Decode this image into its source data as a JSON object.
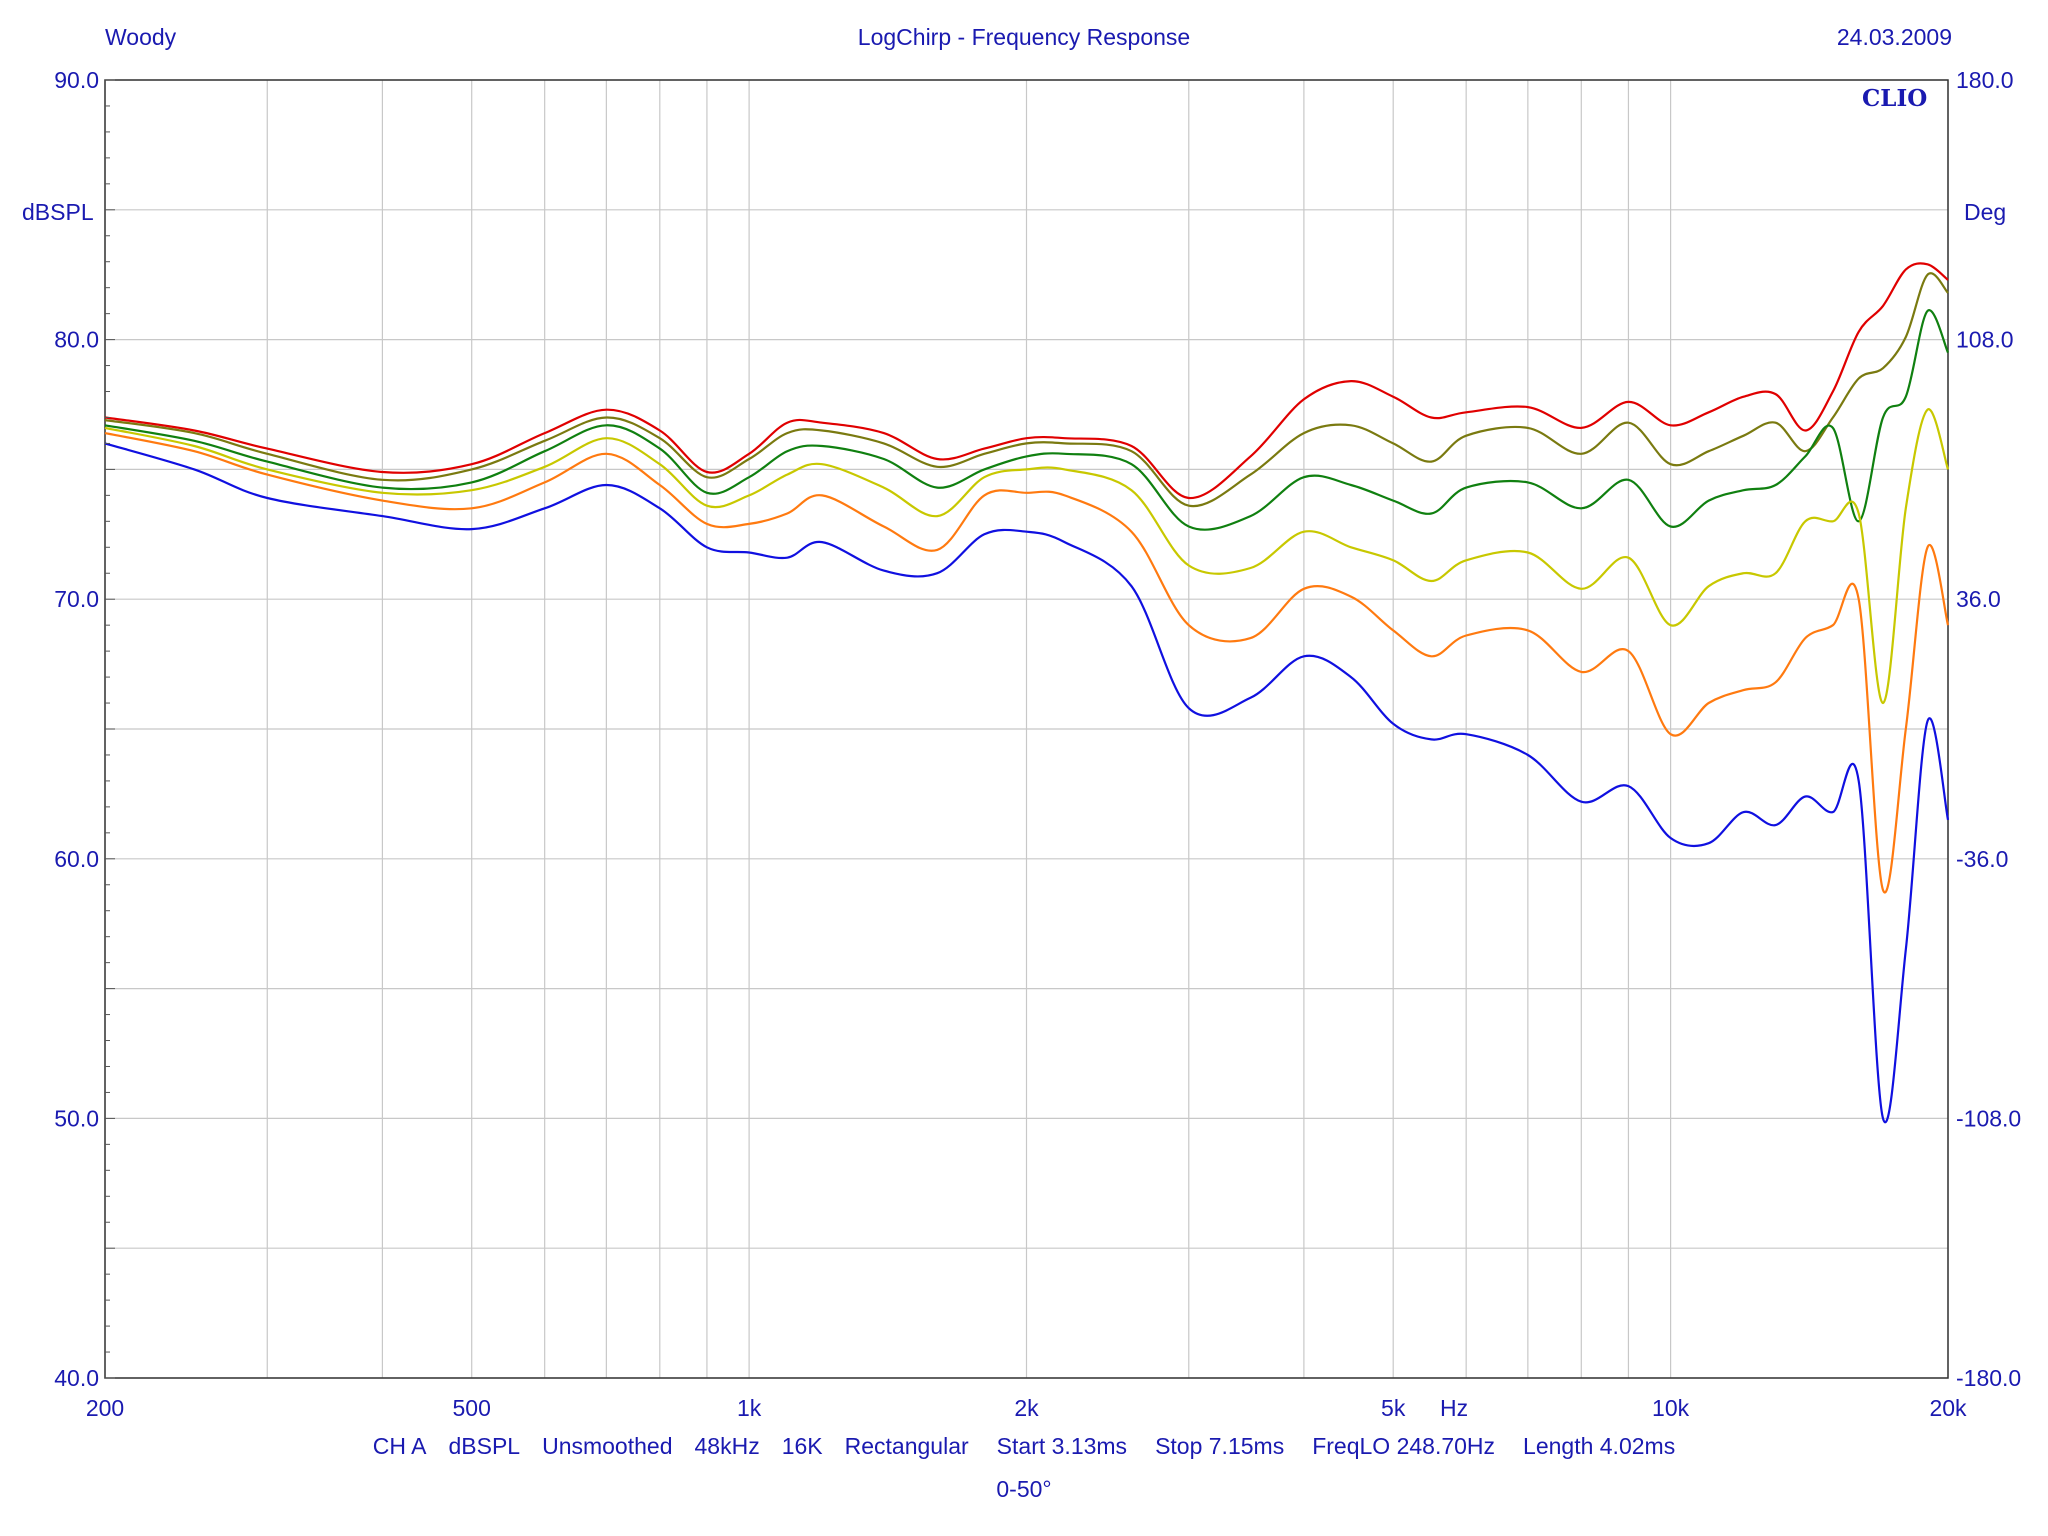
{
  "header": {
    "left": "Woody",
    "center": "LogChirp - Frequency Response",
    "right": "24.03.2009"
  },
  "logo_text": "CLIO",
  "footer": {
    "settings": [
      "CH A",
      "dBSPL",
      "Unsmoothed",
      "48kHz",
      "16K",
      "Rectangular",
      "Start 3.13ms",
      "Stop 7.15ms",
      "FreqLO 248.70Hz",
      "Length 4.02ms"
    ],
    "caption": "0-50°"
  },
  "chart_data": {
    "type": "line",
    "title": "LogChirp - Frequency Response",
    "xlabel": "Hz",
    "ylabel": "dBSPL",
    "y2label": "Deg",
    "x_scale": "log",
    "xlim": [
      200,
      20000
    ],
    "ylim": [
      40,
      90
    ],
    "y2lim": [
      -180,
      180
    ],
    "grid": true,
    "x_tick_labels": [
      {
        "value": 200,
        "label": "200"
      },
      {
        "value": 500,
        "label": "500"
      },
      {
        "value": 1000,
        "label": "1k"
      },
      {
        "value": 2000,
        "label": "2k"
      },
      {
        "value": 5000,
        "label": "5k"
      },
      {
        "value": 10000,
        "label": "10k"
      },
      {
        "value": 20000,
        "label": "20k"
      }
    ],
    "y_tick_labels": [
      "40.0",
      "50.0",
      "60.0",
      "70.0",
      "80.0",
      "90.0"
    ],
    "y2_tick_labels": [
      "-180.0",
      "-108.0",
      "-36.0",
      "36.0",
      "108.0",
      "180.0"
    ],
    "series": [
      {
        "color": "#e00000",
        "points": [
          [
            200,
            77.0
          ],
          [
            250,
            76.5
          ],
          [
            300,
            75.8
          ],
          [
            400,
            74.9
          ],
          [
            500,
            75.2
          ],
          [
            600,
            76.4
          ],
          [
            700,
            77.3
          ],
          [
            800,
            76.5
          ],
          [
            900,
            74.9
          ],
          [
            1000,
            75.6
          ],
          [
            1100,
            76.8
          ],
          [
            1200,
            76.8
          ],
          [
            1400,
            76.4
          ],
          [
            1600,
            75.4
          ],
          [
            1800,
            75.8
          ],
          [
            2000,
            76.2
          ],
          [
            2200,
            76.2
          ],
          [
            2600,
            75.9
          ],
          [
            3000,
            73.9
          ],
          [
            3500,
            75.5
          ],
          [
            4000,
            77.7
          ],
          [
            4500,
            78.4
          ],
          [
            5000,
            77.8
          ],
          [
            5500,
            77.0
          ],
          [
            6000,
            77.2
          ],
          [
            7000,
            77.4
          ],
          [
            8000,
            76.6
          ],
          [
            9000,
            77.6
          ],
          [
            10000,
            76.7
          ],
          [
            11000,
            77.2
          ],
          [
            12000,
            77.8
          ],
          [
            13000,
            77.9
          ],
          [
            14000,
            76.5
          ],
          [
            15000,
            78.0
          ],
          [
            16000,
            80.3
          ],
          [
            17000,
            81.3
          ],
          [
            18000,
            82.7
          ],
          [
            19000,
            82.9
          ],
          [
            20000,
            82.3
          ]
        ]
      },
      {
        "color": "#7a7a10",
        "points": [
          [
            200,
            76.9
          ],
          [
            250,
            76.4
          ],
          [
            300,
            75.6
          ],
          [
            400,
            74.6
          ],
          [
            500,
            75.0
          ],
          [
            600,
            76.1
          ],
          [
            700,
            77.0
          ],
          [
            800,
            76.2
          ],
          [
            900,
            74.7
          ],
          [
            1000,
            75.4
          ],
          [
            1100,
            76.4
          ],
          [
            1200,
            76.5
          ],
          [
            1400,
            76.0
          ],
          [
            1600,
            75.1
          ],
          [
            1800,
            75.6
          ],
          [
            2000,
            76.0
          ],
          [
            2200,
            76.0
          ],
          [
            2600,
            75.7
          ],
          [
            3000,
            73.6
          ],
          [
            3500,
            74.8
          ],
          [
            4000,
            76.4
          ],
          [
            4500,
            76.7
          ],
          [
            5000,
            76.0
          ],
          [
            5500,
            75.3
          ],
          [
            6000,
            76.3
          ],
          [
            7000,
            76.6
          ],
          [
            8000,
            75.6
          ],
          [
            9000,
            76.8
          ],
          [
            10000,
            75.2
          ],
          [
            11000,
            75.7
          ],
          [
            12000,
            76.3
          ],
          [
            13000,
            76.8
          ],
          [
            14000,
            75.7
          ],
          [
            15000,
            77.0
          ],
          [
            16000,
            78.5
          ],
          [
            17000,
            78.9
          ],
          [
            18000,
            80.1
          ],
          [
            19000,
            82.5
          ],
          [
            20000,
            81.8
          ]
        ]
      },
      {
        "color": "#108010",
        "points": [
          [
            200,
            76.7
          ],
          [
            250,
            76.1
          ],
          [
            300,
            75.3
          ],
          [
            400,
            74.3
          ],
          [
            500,
            74.5
          ],
          [
            600,
            75.7
          ],
          [
            700,
            76.7
          ],
          [
            800,
            75.8
          ],
          [
            900,
            74.1
          ],
          [
            1000,
            74.7
          ],
          [
            1100,
            75.7
          ],
          [
            1200,
            75.9
          ],
          [
            1400,
            75.4
          ],
          [
            1600,
            74.3
          ],
          [
            1800,
            75.0
          ],
          [
            2000,
            75.5
          ],
          [
            2200,
            75.6
          ],
          [
            2600,
            75.2
          ],
          [
            3000,
            72.8
          ],
          [
            3500,
            73.2
          ],
          [
            4000,
            74.7
          ],
          [
            4500,
            74.4
          ],
          [
            5000,
            73.8
          ],
          [
            5500,
            73.3
          ],
          [
            6000,
            74.3
          ],
          [
            7000,
            74.5
          ],
          [
            8000,
            73.5
          ],
          [
            9000,
            74.6
          ],
          [
            10000,
            72.8
          ],
          [
            11000,
            73.8
          ],
          [
            12000,
            74.2
          ],
          [
            13000,
            74.4
          ],
          [
            14000,
            75.5
          ],
          [
            15000,
            76.6
          ],
          [
            16000,
            73.0
          ],
          [
            17000,
            77.0
          ],
          [
            18000,
            77.8
          ],
          [
            19000,
            81.1
          ],
          [
            20000,
            79.5
          ]
        ]
      },
      {
        "color": "#c8c800",
        "points": [
          [
            200,
            76.6
          ],
          [
            250,
            75.9
          ],
          [
            300,
            75.0
          ],
          [
            400,
            74.1
          ],
          [
            500,
            74.2
          ],
          [
            600,
            75.1
          ],
          [
            700,
            76.2
          ],
          [
            800,
            75.2
          ],
          [
            900,
            73.6
          ],
          [
            1000,
            74.0
          ],
          [
            1100,
            74.8
          ],
          [
            1200,
            75.2
          ],
          [
            1400,
            74.3
          ],
          [
            1600,
            73.2
          ],
          [
            1800,
            74.7
          ],
          [
            2000,
            75.0
          ],
          [
            2200,
            75.0
          ],
          [
            2600,
            74.2
          ],
          [
            3000,
            71.3
          ],
          [
            3500,
            71.2
          ],
          [
            4000,
            72.6
          ],
          [
            4500,
            72.0
          ],
          [
            5000,
            71.5
          ],
          [
            5500,
            70.7
          ],
          [
            6000,
            71.5
          ],
          [
            7000,
            71.8
          ],
          [
            8000,
            70.4
          ],
          [
            9000,
            71.6
          ],
          [
            10000,
            69.0
          ],
          [
            11000,
            70.5
          ],
          [
            12000,
            71.0
          ],
          [
            13000,
            71.0
          ],
          [
            14000,
            73.0
          ],
          [
            15000,
            73.0
          ],
          [
            16000,
            73.3
          ],
          [
            17000,
            66.0
          ],
          [
            18000,
            73.5
          ],
          [
            19000,
            77.3
          ],
          [
            20000,
            75.0
          ]
        ]
      },
      {
        "color": "#ff7a10",
        "points": [
          [
            200,
            76.4
          ],
          [
            250,
            75.7
          ],
          [
            300,
            74.8
          ],
          [
            400,
            73.8
          ],
          [
            500,
            73.5
          ],
          [
            600,
            74.5
          ],
          [
            700,
            75.6
          ],
          [
            800,
            74.4
          ],
          [
            900,
            72.9
          ],
          [
            1000,
            72.9
          ],
          [
            1100,
            73.3
          ],
          [
            1200,
            74.0
          ],
          [
            1400,
            72.8
          ],
          [
            1600,
            71.9
          ],
          [
            1800,
            74.0
          ],
          [
            2000,
            74.1
          ],
          [
            2200,
            74.0
          ],
          [
            2600,
            72.6
          ],
          [
            3000,
            69.0
          ],
          [
            3500,
            68.5
          ],
          [
            4000,
            70.4
          ],
          [
            4500,
            70.1
          ],
          [
            5000,
            68.8
          ],
          [
            5500,
            67.8
          ],
          [
            6000,
            68.6
          ],
          [
            7000,
            68.8
          ],
          [
            8000,
            67.2
          ],
          [
            9000,
            68.0
          ],
          [
            10000,
            64.8
          ],
          [
            11000,
            66.0
          ],
          [
            12000,
            66.5
          ],
          [
            13000,
            66.8
          ],
          [
            14000,
            68.5
          ],
          [
            15000,
            69.0
          ],
          [
            16000,
            70.0
          ],
          [
            17000,
            58.8
          ],
          [
            18000,
            65.0
          ],
          [
            19000,
            72.0
          ],
          [
            20000,
            69.0
          ]
        ]
      },
      {
        "color": "#1010e0",
        "points": [
          [
            200,
            76.0
          ],
          [
            250,
            75.0
          ],
          [
            300,
            73.9
          ],
          [
            400,
            73.2
          ],
          [
            500,
            72.7
          ],
          [
            600,
            73.5
          ],
          [
            700,
            74.4
          ],
          [
            800,
            73.5
          ],
          [
            900,
            72.0
          ],
          [
            1000,
            71.8
          ],
          [
            1100,
            71.6
          ],
          [
            1200,
            72.2
          ],
          [
            1400,
            71.1
          ],
          [
            1600,
            71.0
          ],
          [
            1800,
            72.5
          ],
          [
            2000,
            72.6
          ],
          [
            2200,
            72.2
          ],
          [
            2600,
            70.5
          ],
          [
            3000,
            65.8
          ],
          [
            3500,
            66.2
          ],
          [
            4000,
            67.8
          ],
          [
            4500,
            67.0
          ],
          [
            5000,
            65.2
          ],
          [
            5500,
            64.6
          ],
          [
            6000,
            64.8
          ],
          [
            7000,
            64.0
          ],
          [
            8000,
            62.2
          ],
          [
            9000,
            62.8
          ],
          [
            10000,
            60.8
          ],
          [
            11000,
            60.6
          ],
          [
            12000,
            61.8
          ],
          [
            13000,
            61.3
          ],
          [
            14000,
            62.4
          ],
          [
            15000,
            61.8
          ],
          [
            16000,
            63.0
          ],
          [
            17000,
            50.0
          ],
          [
            18000,
            56.5
          ],
          [
            19000,
            65.3
          ],
          [
            20000,
            61.5
          ]
        ]
      }
    ]
  }
}
